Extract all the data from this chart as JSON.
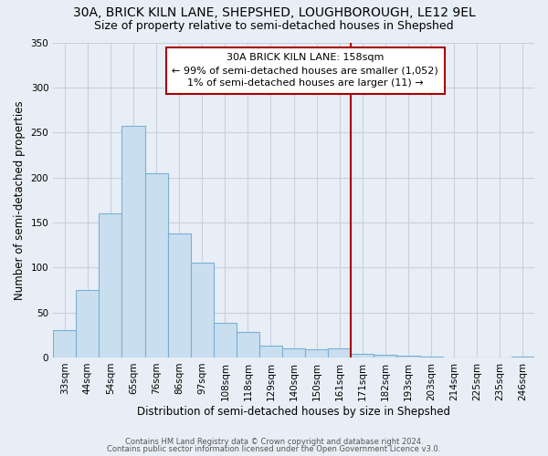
{
  "title": "30A, BRICK KILN LANE, SHEPSHED, LOUGHBOROUGH, LE12 9EL",
  "subtitle": "Size of property relative to semi-detached houses in Shepshed",
  "xlabel": "Distribution of semi-detached houses by size in Shepshed",
  "ylabel": "Number of semi-detached properties",
  "bin_labels": [
    "33sqm",
    "44sqm",
    "54sqm",
    "65sqm",
    "76sqm",
    "86sqm",
    "97sqm",
    "108sqm",
    "118sqm",
    "129sqm",
    "140sqm",
    "150sqm",
    "161sqm",
    "171sqm",
    "182sqm",
    "193sqm",
    "203sqm",
    "214sqm",
    "225sqm",
    "235sqm",
    "246sqm"
  ],
  "bar_values": [
    30,
    75,
    160,
    257,
    205,
    138,
    105,
    38,
    28,
    13,
    10,
    9,
    10,
    4,
    3,
    2,
    1,
    0,
    0,
    0,
    1
  ],
  "bar_color": "#c9dff0",
  "bar_edge_color": "#7aafd4",
  "vline_x": 12,
  "vline_color": "#aa0000",
  "annotation_title": "30A BRICK KILN LANE: 158sqm",
  "annotation_line1": "← 99% of semi-detached houses are smaller (1,052)",
  "annotation_line2": "1% of semi-detached houses are larger (11) →",
  "annotation_box_color": "#ffffff",
  "annotation_box_edge_color": "#aa0000",
  "ylim": [
    0,
    350
  ],
  "footer1": "Contains HM Land Registry data © Crown copyright and database right 2024.",
  "footer2": "Contains public sector information licensed under the Open Government Licence v3.0.",
  "bg_color": "#e8eef5",
  "plot_bg_color": "#e8eef5",
  "grid_color": "#c8d0dc",
  "title_fontsize": 10,
  "subtitle_fontsize": 9,
  "axis_label_fontsize": 8.5,
  "tick_fontsize": 7.5,
  "footer_fontsize": 6,
  "annotation_fontsize": 8
}
